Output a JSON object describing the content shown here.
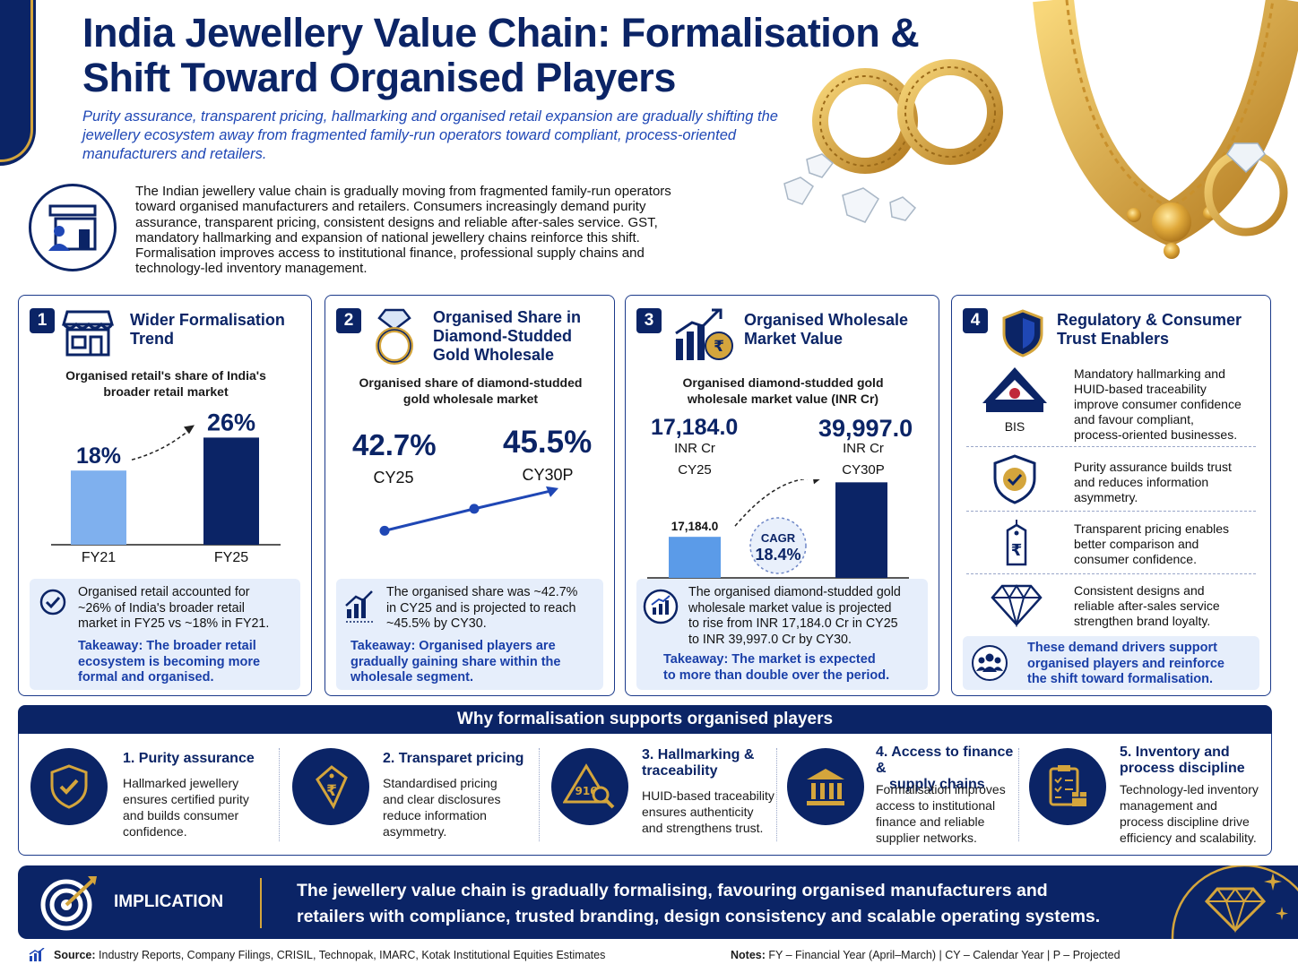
{
  "header": {
    "title_line1": "India Jewellery Value Chain: Formalisation &",
    "title_line2": "Shift Toward Organised Players",
    "subtitle": "Purity assurance, transparent pricing, hallmarking and organised retail expansion are gradually shifting the jewellery ecosystem away from fragmented family-run operators toward compliant, process-oriented manufacturers and retailers."
  },
  "intro": {
    "lines": [
      "The Indian jewellery value chain is gradually moving from fragmented family-run operators",
      "toward organised manufacturers and retailers. Consumers increasingly demand purity",
      "assurance, transparent pricing, consistent designs and reliable after-sales service. GST,",
      "mandatory hallmarking and expansion of national jewellery chains reinforce this shift.",
      "Formalisation improves access to institutional finance, professional supply chains and",
      "technology-led inventory management."
    ]
  },
  "cards": [
    {
      "num": "1",
      "title_lines": [
        "Wider Formalisation",
        "Trend"
      ],
      "caption_lines": [
        "Organised retail's share of India's",
        "broader retail market"
      ],
      "note_lines": [
        "Organised retail accounted for",
        "~26% of India's broader retail",
        "market in FY25 vs ~18% in FY21."
      ],
      "takeaway_lines": [
        "Takeaway: The broader retail",
        "ecosystem is becoming more",
        "formal and organised."
      ]
    },
    {
      "num": "2",
      "title_lines": [
        "Organised Share in",
        "Diamond-Studded",
        "Gold Wholesale"
      ],
      "caption_lines": [
        "Organised share of diamond-studded",
        "gold wholesale market"
      ],
      "note_lines": [
        "The organised share was ~42.7%",
        "in CY25 and is projected to reach",
        "~45.5% by CY30."
      ],
      "takeaway_lines": [
        "Takeaway: Organised players are",
        "gradually gaining share within the",
        "wholesale segment."
      ]
    },
    {
      "num": "3",
      "title_lines": [
        "Organised Wholesale",
        "Market Value"
      ],
      "caption_lines": [
        "Organised diamond-studded gold",
        "wholesale market value (INR Cr)"
      ],
      "note_lines": [
        "The organised diamond-studded gold",
        "wholesale market value is projected",
        "to rise from INR 17,184.0 Cr in CY25",
        "to INR 39,997.0 Cr by CY30."
      ],
      "takeaway_lines": [
        "Takeaway: The market is expected",
        "to more than double over the period."
      ]
    },
    {
      "num": "4",
      "title_lines": [
        "Regulatory & Consumer",
        "Trust Enablers"
      ],
      "enablers": [
        {
          "icon": "bis-logo-icon",
          "logo_text": "BIS",
          "lines": [
            "Mandatory hallmarking and",
            "HUID-based traceability",
            "improve consumer confidence",
            "and favour compliant,",
            "process-oriented businesses."
          ]
        },
        {
          "icon": "shield-check-icon",
          "lines": [
            "Purity assurance builds trust",
            "and reduces information",
            "asymmetry."
          ]
        },
        {
          "icon": "rupee-tag-icon",
          "lines": [
            "Transparent pricing enables",
            "better comparison and",
            "consumer confidence."
          ]
        },
        {
          "icon": "diamond-icon",
          "lines": [
            "Consistent designs and",
            "reliable after-sales service",
            "strengthen brand loyalty."
          ]
        }
      ],
      "footer_lines": [
        "These demand drivers support",
        "organised players and reinforce",
        "the shift toward formalisation."
      ]
    }
  ],
  "chart_data": [
    {
      "type": "bar",
      "title": "Organised retail's share of India's broader retail market",
      "categories": [
        "FY21",
        "FY25"
      ],
      "values": [
        18,
        26
      ],
      "value_labels": [
        "18%",
        "26%"
      ],
      "unit": "%",
      "colors": [
        "#7fb0ee",
        "#0b2466"
      ]
    },
    {
      "type": "line",
      "title": "Organised share of diamond-studded gold wholesale market",
      "categories": [
        "CY25",
        "CY30P"
      ],
      "values": [
        42.7,
        45.5
      ],
      "value_labels": [
        "42.7%",
        "45.5%"
      ],
      "unit": "%",
      "color": "#1f47b5"
    },
    {
      "type": "bar",
      "title": "Organised diamond-studded gold wholesale market value (INR Cr)",
      "categories": [
        "CY25",
        "CY30P"
      ],
      "values": [
        17184.0,
        39997.0
      ],
      "value_labels": [
        "17,184.0",
        "39,997.0"
      ],
      "unit_label": "INR Cr",
      "annotation_top": "CAGR",
      "annotation_value": "18.4%",
      "colors": [
        "#5b9be8",
        "#0b2466"
      ]
    }
  ],
  "why": {
    "heading": "Why formalisation supports organised players",
    "items": [
      {
        "icon": "shield-check-icon",
        "title_lines": [
          "1. Purity assurance"
        ],
        "desc_lines": [
          "Hallmarked jewellery",
          "ensures certified purity",
          "and builds consumer",
          "confidence."
        ]
      },
      {
        "icon": "rupee-tag-icon",
        "title_lines": [
          "2. Transparet pricing"
        ],
        "desc_lines": [
          "Standardised pricing",
          "and clear disclosures",
          "reduce information",
          "asymmetry."
        ]
      },
      {
        "icon": "hallmark-magnifier-icon",
        "icon_text": "916",
        "title_lines": [
          "3. Hallmarking &",
          "traceability"
        ],
        "desc_lines": [
          "HUID-based traceability",
          "ensures authenticity",
          "and strengthens trust."
        ]
      },
      {
        "icon": "bank-icon",
        "title_lines": [
          "4. Access to finance &",
          "supply chains"
        ],
        "desc_lines": [
          "Formalisation improves",
          "access to institutional",
          "finance and reliable",
          "supplier networks."
        ]
      },
      {
        "icon": "clipboard-box-icon",
        "title_lines": [
          "5. Inventory and",
          "process discipline"
        ],
        "desc_lines": [
          "Technology-led inventory",
          "management and",
          "process discipline drive",
          "efficiency and scalability."
        ]
      }
    ]
  },
  "implication": {
    "label": "IMPLICATION",
    "lines": [
      "The jewellery value chain is gradually formalising, favouring organised manufacturers and",
      "retailers with compliance, trusted branding, design consistency and scalable operating systems."
    ]
  },
  "footer": {
    "source_label": "Source:",
    "source_text": "Industry Reports, Company Filings, CRISIL, Technopak, IMARC, Kotak Institutional Equities Estimates",
    "notes_label": "Notes:",
    "notes_text": "FY – Financial Year (April–March) | CY – Calendar Year | P – Projected"
  },
  "colors": {
    "navy": "#0b2466",
    "blue": "#1f47b5",
    "light_blue": "#e6eefb",
    "gold": "#d4a53c"
  }
}
